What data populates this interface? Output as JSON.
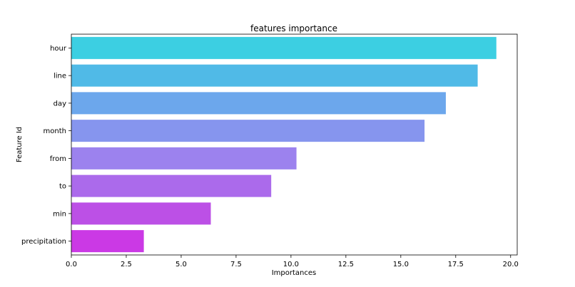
{
  "chart_data": {
    "type": "bar",
    "orientation": "horizontal",
    "title": "features importance",
    "xlabel": "Importances",
    "ylabel": "Feature Id",
    "xlim": [
      0,
      20.3
    ],
    "x_ticks": [
      "0.0",
      "2.5",
      "5.0",
      "7.5",
      "10.0",
      "12.5",
      "15.0",
      "17.5",
      "20.0"
    ],
    "x_tick_values": [
      0,
      2.5,
      5,
      7.5,
      10,
      12.5,
      15,
      17.5,
      20
    ],
    "categories": [
      "hour",
      "line",
      "day",
      "month",
      "from",
      "to",
      "min",
      "precipitation"
    ],
    "values": [
      19.35,
      18.5,
      17.05,
      16.08,
      10.25,
      9.1,
      6.35,
      3.3
    ],
    "colors": [
      "#3ccfe2",
      "#50bae7",
      "#6ca7ec",
      "#8695ee",
      "#9c82ee",
      "#ab6aeb",
      "#bc50e6",
      "#cb39e5"
    ],
    "grid": false,
    "legend": "none"
  }
}
